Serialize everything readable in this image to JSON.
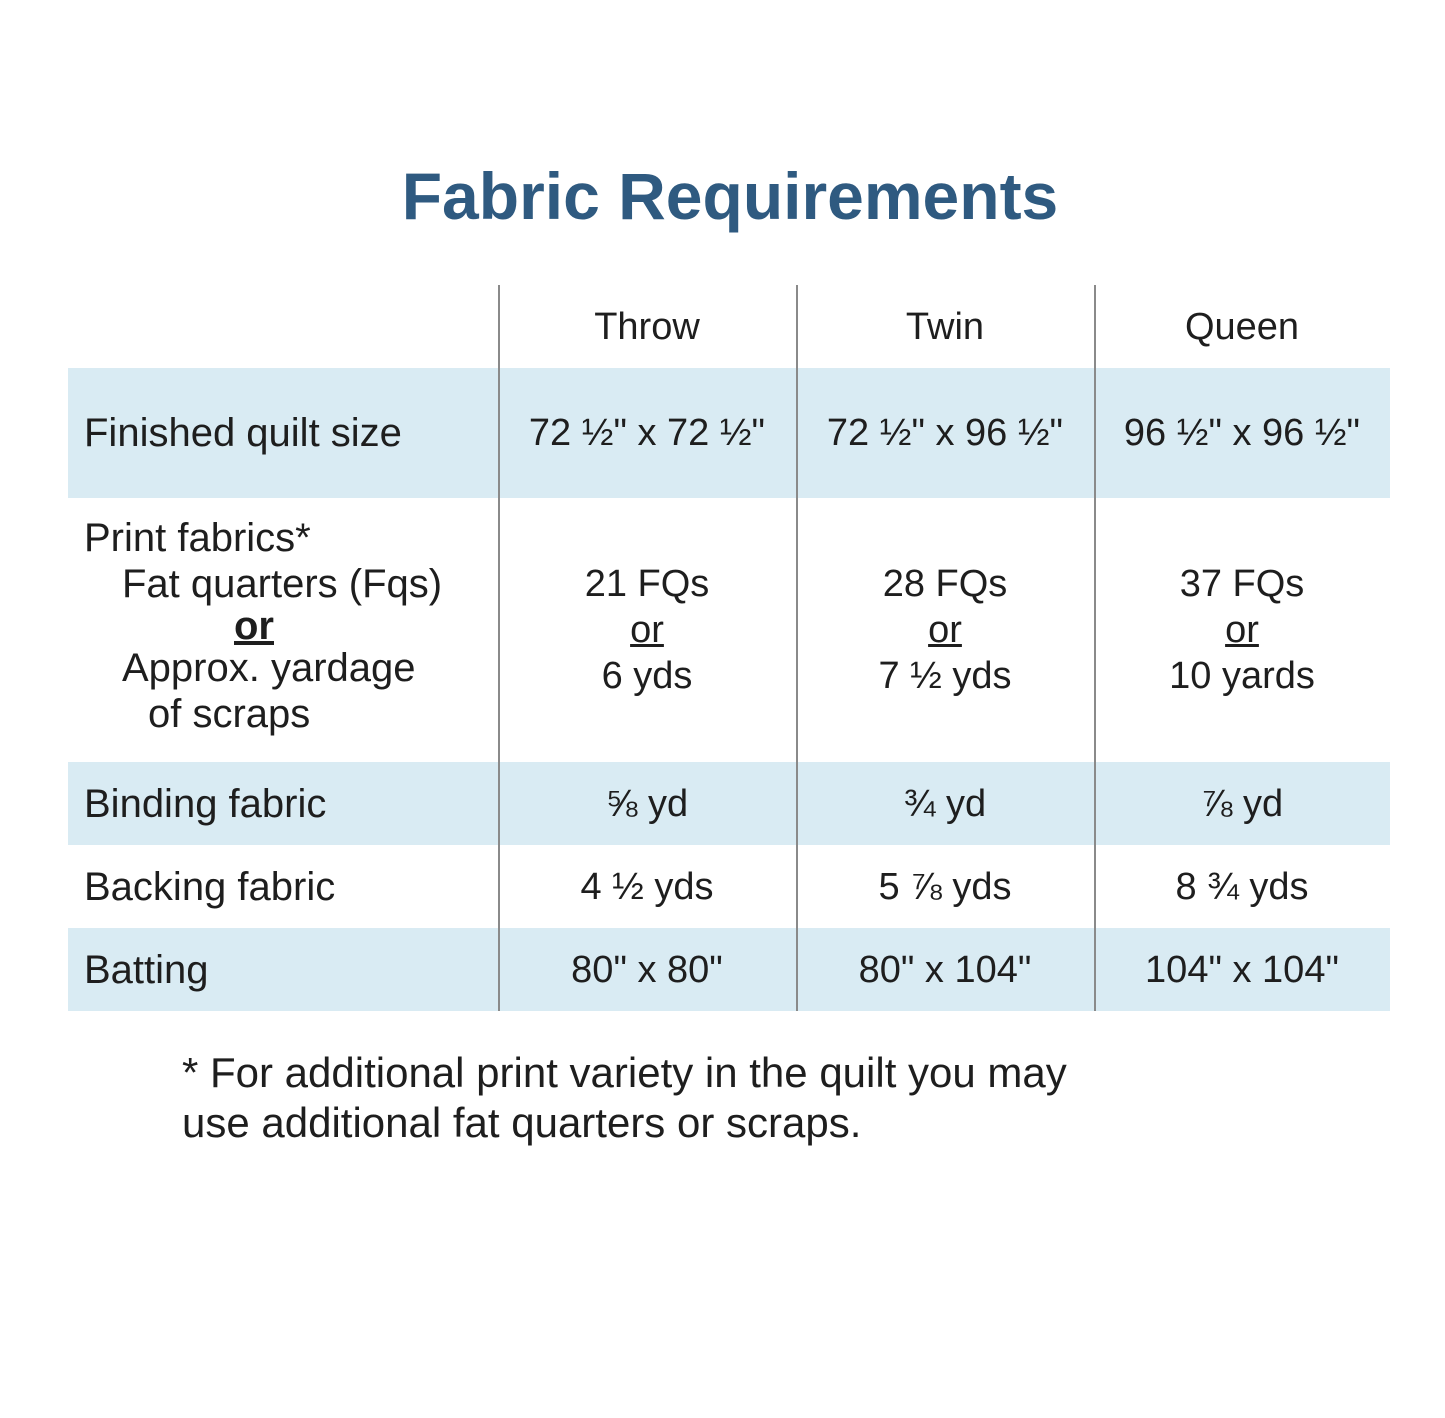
{
  "title": "Fabric Requirements",
  "columns": [
    "Throw",
    "Twin",
    "Queen"
  ],
  "rows": [
    {
      "label": "Finished quilt size",
      "values": [
        "72 ½\" x 72 ½\"",
        "72 ½\" x 96 ½\"",
        "96 ½\" x 96 ½\""
      ]
    },
    {
      "label": "Print fabrics*",
      "sublabels": [
        "Fat quarters (Fqs)",
        "or",
        "Approx. yardage",
        "of scraps"
      ],
      "values": [
        [
          "21 FQs",
          "or",
          "6 yds"
        ],
        [
          "28 FQs",
          "or",
          "7 ½ yds"
        ],
        [
          "37 FQs",
          "or",
          "10 yards"
        ]
      ]
    },
    {
      "label": "Binding fabric",
      "values": [
        "⅝ yd",
        "¾ yd",
        "⅞ yd"
      ]
    },
    {
      "label": "Backing fabric",
      "values": [
        "4 ½ yds",
        "5 ⅞ yds",
        "8 ¾ yds"
      ]
    },
    {
      "label": "Batting",
      "values": [
        "80\" x 80\"",
        "80\" x 104\"",
        "104\" x 104\""
      ]
    }
  ],
  "footnote": [
    "* For additional print variety in the quilt you may",
    "use additional fat quarters or scraps."
  ],
  "colors": {
    "title": "#2f5a80",
    "band": "#d9ebf3"
  }
}
